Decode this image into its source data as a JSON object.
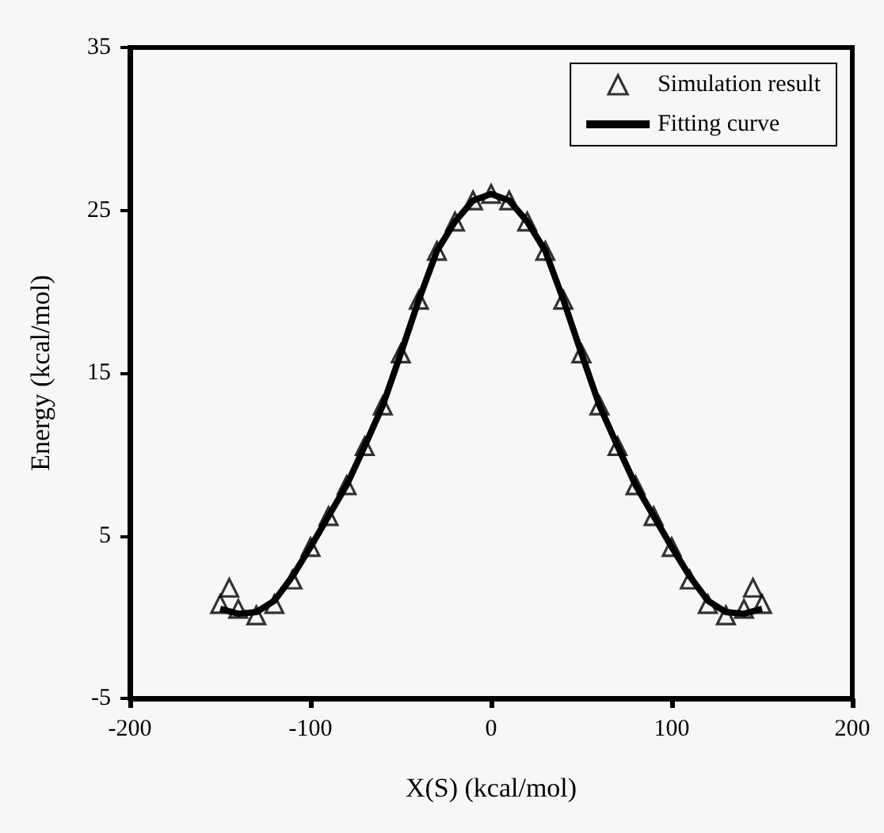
{
  "chart_data": {
    "type": "scatter",
    "xlabel": "X(S) (kcal/mol)",
    "ylabel": "Energy (kcal/mol)",
    "xlim": [
      -200,
      200
    ],
    "ylim": [
      -5,
      35
    ],
    "xticks": [
      -200,
      -100,
      0,
      100,
      200
    ],
    "yticks": [
      -5,
      5,
      15,
      25,
      35
    ],
    "grid": false,
    "legend": "top right",
    "series": [
      {
        "name": "Simulation result",
        "marker": "triangle",
        "color": "#000000",
        "x": [
          -150,
          -145,
          -140,
          -130,
          -120,
          -110,
          -100,
          -90,
          -80,
          -70,
          -60,
          -50,
          -40,
          -30,
          -20,
          -10,
          0,
          10,
          20,
          30,
          40,
          50,
          60,
          70,
          80,
          90,
          100,
          110,
          120,
          130,
          140,
          145,
          150
        ],
        "values": [
          0.8,
          1.8,
          0.5,
          0.1,
          0.8,
          2.3,
          4.3,
          6.2,
          8.1,
          10.5,
          13,
          16.2,
          19.5,
          22.5,
          24.3,
          25.6,
          26,
          25.6,
          24.3,
          22.5,
          19.5,
          16.2,
          13,
          10.5,
          8.1,
          6.2,
          4.3,
          2.3,
          0.8,
          0.1,
          0.5,
          1.8,
          0.8
        ]
      },
      {
        "name": "Fitting curve",
        "type": "line",
        "marker": "none",
        "color": "#000000",
        "x": [
          -150,
          -140,
          -130,
          -120,
          -110,
          -100,
          -90,
          -80,
          -70,
          -60,
          -50,
          -40,
          -30,
          -20,
          -10,
          0,
          10,
          20,
          30,
          40,
          50,
          60,
          70,
          80,
          90,
          100,
          110,
          120,
          130,
          140,
          150
        ],
        "values": [
          0.5,
          0.2,
          0.3,
          1,
          2.5,
          4.3,
          6.2,
          8.1,
          10.5,
          13,
          16.2,
          19.5,
          22.5,
          24.3,
          25.6,
          26,
          25.6,
          24.3,
          22.5,
          19.5,
          16.2,
          13,
          10.5,
          8.1,
          6.2,
          4.3,
          2.5,
          1,
          0.3,
          0.2,
          0.5
        ]
      }
    ]
  }
}
